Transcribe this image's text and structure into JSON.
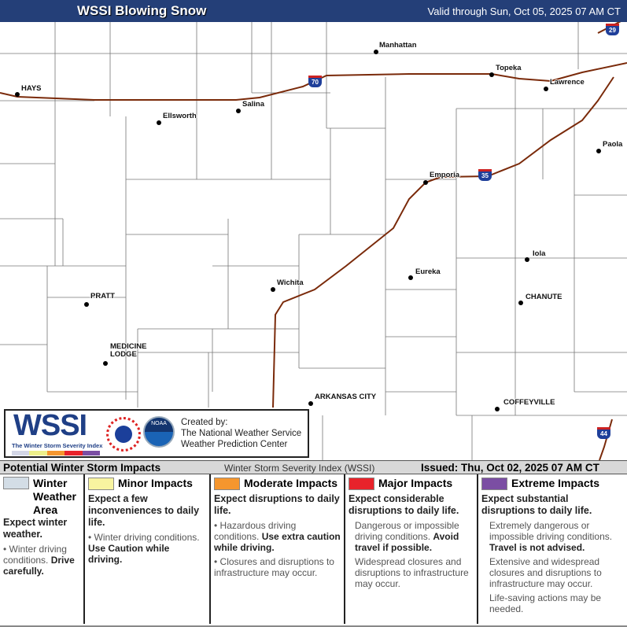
{
  "header": {
    "title": "WSSI Blowing Snow",
    "valid": "Valid through Sun, Oct 05, 2025 07 AM CT",
    "color": "#243f78"
  },
  "map": {
    "cities": [
      {
        "name": "Manhattan"
      },
      {
        "name": "Topeka"
      },
      {
        "name": "Lawrence"
      },
      {
        "name": "HAYS"
      },
      {
        "name": "Salina"
      },
      {
        "name": "Ellsworth"
      },
      {
        "name": "Paola"
      },
      {
        "name": "Emporia"
      },
      {
        "name": "Iola"
      },
      {
        "name": "Eureka"
      },
      {
        "name": "Wichita"
      },
      {
        "name": "PRATT"
      },
      {
        "name": "CHANUTE"
      },
      {
        "name": "MEDICINE LODGE"
      },
      {
        "name": "ARKANSAS CITY"
      },
      {
        "name": "COFFEYVILLE"
      }
    ],
    "interstates": [
      "70",
      "35",
      "44",
      "29"
    ],
    "road_color": "#7a2a0a"
  },
  "logo": {
    "wordmark": "WSSI",
    "subtitle": "The Winter Storm Severity Index",
    "created_by": "Created by:",
    "org1": "The National Weather Service",
    "org2": "Weather Prediction Center"
  },
  "legend": {
    "title": "Potential Winter Storm Impacts",
    "index_name": "Winter Storm Severity Index (WSSI)",
    "issued": "Issued: Thu, Oct 02, 2025 07 AM CT",
    "categories": [
      {
        "label": "Winter Weather Area",
        "color": "#d3dde6",
        "lead": "Expect winter weather.",
        "b1": "Winter driving conditions.",
        "b1s": "Drive carefully."
      },
      {
        "label": "Minor Impacts",
        "color": "#f8f4a0",
        "lead": "Expect a few inconveniences to daily life.",
        "b1": "Winter driving conditions.",
        "b1s": "Use Caution while driving."
      },
      {
        "label": "Moderate Impacts",
        "color": "#f5962e",
        "lead": "Expect disruptions to daily life.",
        "b1": "Hazardous driving conditions.",
        "b1s": "Use extra caution while driving.",
        "b2": "Closures and disruptions to infrastructure may occur."
      },
      {
        "label": "Major Impacts",
        "color": "#e8232b",
        "lead": "Expect considerable disruptions to daily life.",
        "b1": "Dangerous or impossible driving conditions.",
        "b1s": "Avoid travel if possible.",
        "b2": "Widespread closures and disruptions to infrastructure may occur."
      },
      {
        "label": "Extreme Impacts",
        "color": "#7b4ea3",
        "lead": "Expect substantial disruptions to daily life.",
        "b1": "Extremely dangerous or impossible driving conditions.",
        "b1s": "Travel is not advised.",
        "b2": "Extensive and widespread closures and disruptions to infrastructure may occur.",
        "b3": "Life-saving actions may be needed."
      }
    ]
  }
}
